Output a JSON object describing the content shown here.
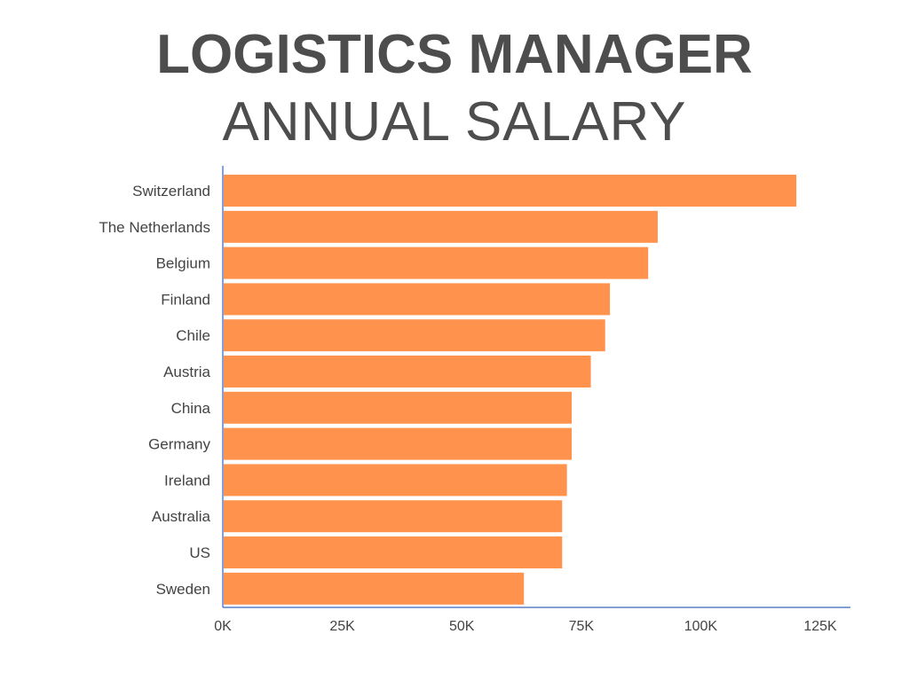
{
  "title_line1": "LOGISTICS MANAGER",
  "title_line2": "ANNUAL SALARY",
  "colors": {
    "bar": "#ff924d",
    "axis": "#5b7fc9",
    "text": "#444444",
    "title": "#4d4d4d"
  },
  "chart_data": {
    "type": "bar",
    "orientation": "horizontal",
    "title": "LOGISTICS MANAGER ANNUAL SALARY",
    "xlabel": "",
    "ylabel": "",
    "categories": [
      "Switzerland",
      "The Netherlands",
      "Belgium",
      "Finland",
      "Chile",
      "Austria",
      "China",
      "Germany",
      "Ireland",
      "Australia",
      "US",
      "Sweden"
    ],
    "values": [
      120000,
      91000,
      89000,
      81000,
      80000,
      77000,
      73000,
      73000,
      72000,
      71000,
      71000,
      63000
    ],
    "xlim": [
      0,
      125000
    ],
    "xticks": [
      0,
      25000,
      50000,
      75000,
      100000,
      125000
    ],
    "xtick_labels": [
      "0K",
      "25K",
      "50K",
      "75K",
      "100K",
      "125K"
    ],
    "grid": false,
    "legend": "none"
  }
}
